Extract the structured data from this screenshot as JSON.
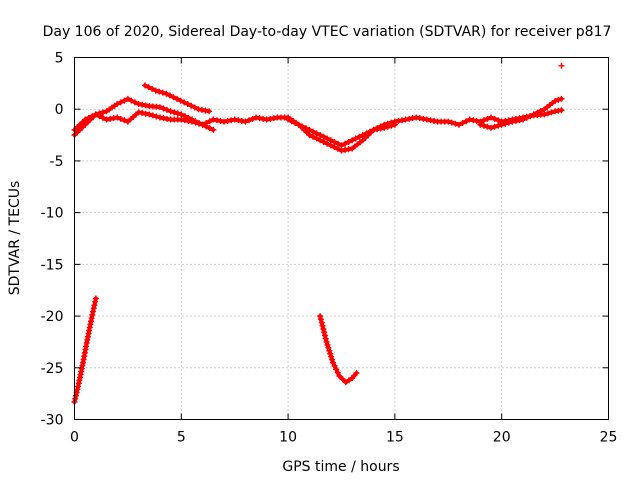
{
  "chart_data": {
    "type": "scatter",
    "title": "Day 106 of 2020, Sidereal Day-to-day VTEC variation (SDTVAR) for receiver p817",
    "xlabel": "GPS time / hours",
    "ylabel": "SDTVAR / TECUs",
    "xlim": [
      0,
      25
    ],
    "ylim": [
      -30,
      5
    ],
    "xticks": [
      0,
      5,
      10,
      15,
      20,
      25
    ],
    "xtick_labels": [
      "0",
      "5",
      "10",
      "15",
      "20",
      "25"
    ],
    "yticks": [
      5,
      0,
      -5,
      -10,
      -15,
      -20,
      -25,
      -30
    ],
    "ytick_labels": [
      "5",
      "0",
      "-5",
      "-10",
      "-15",
      "-20",
      "-25",
      "-30"
    ],
    "grid": true,
    "marker": "plus",
    "series": [
      {
        "name": "sat_track_1",
        "color": "#ff0000",
        "x": [
          0.0,
          0.5,
          1.0,
          1.5,
          2.0,
          2.5,
          3.0,
          3.5,
          4.0,
          4.5,
          5.0,
          5.5,
          6.0,
          6.5,
          7.0,
          7.5,
          8.0,
          8.5,
          9.0,
          9.5,
          10.0,
          10.5,
          11.0,
          11.5,
          12.0,
          12.5,
          13.0,
          13.5,
          14.0,
          14.5,
          15.0,
          15.5,
          16.0,
          16.5,
          17.0,
          17.5,
          18.0,
          18.5,
          19.0,
          19.5,
          20.0,
          20.5,
          21.0,
          21.5,
          22.0,
          22.5,
          22.8
        ],
        "y": [
          -2.5,
          -1.5,
          -0.5,
          -1.0,
          -0.8,
          -1.2,
          -0.3,
          -0.5,
          -0.8,
          -1.0,
          -1.0,
          -1.2,
          -1.5,
          -1.0,
          -1.2,
          -1.0,
          -1.2,
          -0.8,
          -1.0,
          -0.8,
          -0.8,
          -1.5,
          -2.5,
          -3.0,
          -3.5,
          -4.0,
          -3.8,
          -3.0,
          -2.0,
          -1.5,
          -1.2,
          -1.0,
          -0.8,
          -1.0,
          -1.2,
          -1.2,
          -1.5,
          -1.0,
          -1.2,
          -0.8,
          -1.2,
          -1.0,
          -0.8,
          -0.6,
          -0.5,
          -0.2,
          -0.1
        ]
      },
      {
        "name": "sat_track_2",
        "color": "#ff0000",
        "x": [
          0.0,
          0.5,
          1.0,
          1.5,
          2.0,
          2.5,
          3.0,
          3.5,
          4.0,
          4.5,
          5.0,
          5.5,
          6.0,
          6.5
        ],
        "y": [
          -2.0,
          -1.0,
          -0.5,
          -0.2,
          0.5,
          1.0,
          0.5,
          0.3,
          0.2,
          -0.2,
          -0.5,
          -1.0,
          -1.5,
          -2.0
        ]
      },
      {
        "name": "sat_track_3",
        "color": "#ff0000",
        "x": [
          3.3,
          3.8,
          4.3,
          4.8,
          5.3,
          5.8,
          6.3
        ],
        "y": [
          2.3,
          1.8,
          1.5,
          1.0,
          0.5,
          0.0,
          -0.2
        ]
      },
      {
        "name": "sat_track_4",
        "color": "#ff0000",
        "x": [
          10.0,
          10.5,
          11.0,
          11.5,
          12.0,
          12.5,
          13.0,
          13.5,
          14.0,
          14.5,
          15.0
        ],
        "y": [
          -1.0,
          -1.5,
          -2.0,
          -2.5,
          -3.0,
          -3.5,
          -3.0,
          -2.5,
          -2.0,
          -1.8,
          -1.5
        ]
      },
      {
        "name": "sat_track_5",
        "color": "#ff0000",
        "x": [
          19.0,
          19.5,
          20.0,
          20.5,
          21.0,
          21.5,
          22.0,
          22.5,
          22.8
        ],
        "y": [
          -1.5,
          -1.8,
          -1.5,
          -1.2,
          -1.0,
          -0.5,
          0.0,
          0.8,
          1.0
        ]
      },
      {
        "name": "sat_track_6",
        "color": "#ff0000",
        "x": [
          0.0,
          0.2,
          0.4,
          0.6,
          0.8,
          1.0
        ],
        "y": [
          -28.3,
          -26.5,
          -24.5,
          -22.3,
          -20.2,
          -18.3
        ]
      },
      {
        "name": "sat_track_7",
        "color": "#ff0000",
        "x": [
          11.5,
          11.8,
          12.1,
          12.4,
          12.7,
          13.0,
          13.2
        ],
        "y": [
          -20.0,
          -22.5,
          -24.5,
          -25.8,
          -26.4,
          -26.0,
          -25.5
        ]
      },
      {
        "name": "sat_track_8",
        "color": "#ff0000",
        "x": [
          22.8
        ],
        "y": [
          4.2
        ]
      }
    ]
  }
}
